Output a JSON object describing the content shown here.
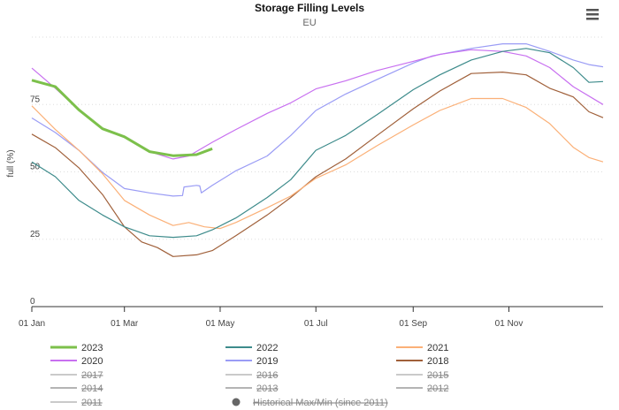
{
  "menu_icon": "hamburger-menu-icon",
  "chart_data": {
    "type": "line",
    "title": "Storage Filling Levels",
    "subtitle": "EU",
    "ylabel": "full (%)",
    "xlabel": "",
    "ylim": [
      0,
      100
    ],
    "xlim_day_of_year": [
      0,
      364
    ],
    "y_ticks": [
      {
        "v": 0,
        "label": "0"
      },
      {
        "v": 25,
        "label": "25"
      },
      {
        "v": 50,
        "label": "50"
      },
      {
        "v": 75,
        "label": "75"
      },
      {
        "v": 100,
        "label": ""
      }
    ],
    "x_ticks": [
      {
        "day": 0,
        "label": "01 Jan"
      },
      {
        "day": 59,
        "label": "01 Mar"
      },
      {
        "day": 120,
        "label": "01 May"
      },
      {
        "day": 181,
        "label": "01 Jul"
      },
      {
        "day": 243,
        "label": "01 Sep"
      },
      {
        "day": 304,
        "label": "01 Nov"
      }
    ],
    "grid": true,
    "legend_placement": "bottom",
    "series": [
      {
        "name": "2023",
        "color": "#7cc04b",
        "width": 3,
        "visible": true,
        "x": [
          0,
          15,
          30,
          45,
          59,
          75,
          90,
          105,
          115
        ],
        "y": [
          84,
          81.6,
          73,
          66,
          63,
          57.5,
          56,
          56.4,
          58.6
        ]
      },
      {
        "name": "2022",
        "color": "#3d8b8b",
        "width": 1.2,
        "visible": true,
        "x": [
          0,
          15,
          30,
          45,
          59,
          75,
          90,
          105,
          115,
          130,
          150,
          165,
          181,
          200,
          220,
          243,
          260,
          280,
          300,
          315,
          330,
          345,
          355,
          364
        ],
        "y": [
          53.7,
          48.2,
          39.4,
          34,
          29.6,
          26.3,
          25.7,
          26.3,
          28.5,
          32.9,
          40.5,
          47.1,
          58,
          63.5,
          71.2,
          80.5,
          86,
          91.5,
          94.7,
          95.8,
          94.2,
          88.7,
          83.2,
          83.5
        ]
      },
      {
        "name": "2021",
        "color": "#fbb077",
        "width": 1.2,
        "visible": true,
        "x": [
          0,
          15,
          30,
          45,
          59,
          75,
          90,
          100,
          110,
          120,
          130,
          150,
          165,
          181,
          200,
          220,
          243,
          260,
          280,
          300,
          315,
          330,
          345,
          355,
          364
        ],
        "y": [
          74.5,
          65.7,
          58,
          49.3,
          39.4,
          34,
          30.1,
          31.2,
          29.6,
          29,
          31.2,
          36.7,
          41,
          47.6,
          52.6,
          59.7,
          67.4,
          72.8,
          77.2,
          77.2,
          73.9,
          67.9,
          59.1,
          55.3,
          53.7
        ]
      },
      {
        "name": "2020",
        "color": "#c870f0",
        "width": 1.2,
        "visible": true,
        "x": [
          0,
          15,
          30,
          45,
          59,
          75,
          90,
          100,
          115,
          130,
          150,
          165,
          181,
          200,
          220,
          243,
          260,
          280,
          300,
          315,
          330,
          345,
          364
        ],
        "y": [
          88.5,
          81,
          73,
          66,
          63,
          57.5,
          54.8,
          55.9,
          61,
          65.7,
          71.7,
          75.6,
          80.8,
          83.8,
          87.6,
          91,
          93.6,
          95.3,
          94.7,
          93,
          88.7,
          81.6,
          75
        ]
      },
      {
        "name": "2019",
        "color": "#9a9cf5",
        "width": 1.2,
        "visible": true,
        "x": [
          0,
          15,
          30,
          45,
          59,
          75,
          90,
          96,
          97,
          105,
          107,
          108,
          115,
          130,
          150,
          165,
          181,
          200,
          220,
          243,
          255,
          280,
          300,
          315,
          330,
          345,
          355,
          364
        ],
        "y": [
          70,
          64.6,
          58,
          49.8,
          43.8,
          42.2,
          41,
          41.2,
          44.4,
          45,
          44.8,
          42.2,
          45,
          50.4,
          55.9,
          63.5,
          72.8,
          78.9,
          84.3,
          90.4,
          93,
          95.8,
          97.5,
          97.5,
          94.7,
          91.5,
          89.8,
          89
        ]
      },
      {
        "name": "2018",
        "color": "#a0603a",
        "width": 1.2,
        "visible": true,
        "x": [
          0,
          15,
          30,
          45,
          59,
          70,
          80,
          90,
          105,
          115,
          130,
          150,
          165,
          181,
          200,
          220,
          243,
          260,
          280,
          300,
          315,
          330,
          345,
          355,
          364
        ],
        "y": [
          64,
          59,
          51.5,
          41.6,
          29.6,
          24,
          21.9,
          18.6,
          19.2,
          20.8,
          26.3,
          34,
          40.5,
          48.2,
          54.8,
          63.5,
          73.4,
          80,
          86.5,
          87,
          86,
          81,
          77.8,
          72.3,
          70.1
        ]
      },
      {
        "name": "2017",
        "color": "#aaaaaa",
        "visible": false
      },
      {
        "name": "2016",
        "color": "#aaaaaa",
        "visible": false
      },
      {
        "name": "2015",
        "color": "#aaaaaa",
        "visible": false
      },
      {
        "name": "2014",
        "color": "#888888",
        "visible": false
      },
      {
        "name": "2013",
        "color": "#888888",
        "visible": false
      },
      {
        "name": "2012",
        "color": "#888888",
        "visible": false
      },
      {
        "name": "2011",
        "color": "#aaaaaa",
        "visible": false
      },
      {
        "name": "Historical Max/Min (since 2011)",
        "color": "#666666",
        "visible": false,
        "marker": "circle"
      }
    ]
  }
}
